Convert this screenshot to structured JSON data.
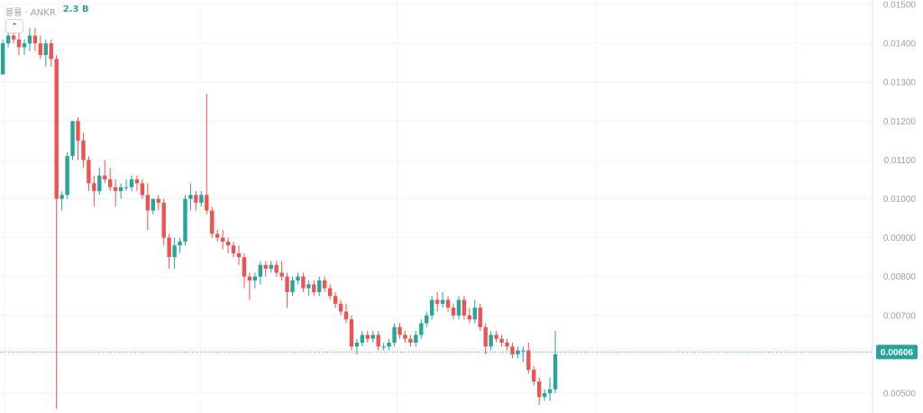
{
  "legend": {
    "label": "볼륨 · ANKR",
    "volume": "2.3 B"
  },
  "price_badge": "0.00606",
  "colors": {
    "up": "#26a69a",
    "down": "#ef5350",
    "grid": "#f0f3fa",
    "axis_text": "#9aa1ab"
  },
  "chart_data": {
    "type": "candlestick",
    "y_ticks": [
      "0.01500",
      "0.01400",
      "0.01300",
      "0.01200",
      "0.01100",
      "0.01000",
      "0.00900",
      "0.00800",
      "0.00700",
      "0.00600",
      "0.00500"
    ],
    "ylim": [
      0.0046,
      0.0151
    ],
    "current_price": 0.00606,
    "candles": [
      [
        0.0132,
        0.0141,
        0.0133,
        0.014
      ],
      [
        0.014,
        0.0144,
        0.0139,
        0.0142
      ],
      [
        0.0142,
        0.0145,
        0.014,
        0.0141
      ],
      [
        0.0141,
        0.0143,
        0.0137,
        0.0139
      ],
      [
        0.0139,
        0.0141,
        0.0137,
        0.014
      ],
      [
        0.014,
        0.0144,
        0.0138,
        0.0142
      ],
      [
        0.0142,
        0.0144,
        0.0138,
        0.014
      ],
      [
        0.014,
        0.0142,
        0.0136,
        0.0137
      ],
      [
        0.0137,
        0.0141,
        0.0134,
        0.014
      ],
      [
        0.014,
        0.0141,
        0.0134,
        0.0136
      ],
      [
        0.0136,
        0.0137,
        0.0046,
        0.01
      ],
      [
        0.01,
        0.0102,
        0.0097,
        0.0101
      ],
      [
        0.0101,
        0.0112,
        0.01,
        0.0111
      ],
      [
        0.0111,
        0.012,
        0.011,
        0.012
      ],
      [
        0.012,
        0.0121,
        0.011,
        0.0115
      ],
      [
        0.0115,
        0.0117,
        0.0108,
        0.011
      ],
      [
        0.011,
        0.0111,
        0.0102,
        0.0104
      ],
      [
        0.0104,
        0.0106,
        0.0098,
        0.0102
      ],
      [
        0.0102,
        0.0108,
        0.0101,
        0.0106
      ],
      [
        0.0106,
        0.011,
        0.0104,
        0.0105
      ],
      [
        0.0105,
        0.0108,
        0.0102,
        0.0103
      ],
      [
        0.0103,
        0.0105,
        0.0098,
        0.0102
      ],
      [
        0.0102,
        0.0104,
        0.01,
        0.0103
      ],
      [
        0.0103,
        0.0105,
        0.0102,
        0.0103
      ],
      [
        0.0103,
        0.0106,
        0.0102,
        0.0105
      ],
      [
        0.0105,
        0.0106,
        0.0102,
        0.0104
      ],
      [
        0.0104,
        0.0105,
        0.01,
        0.0101
      ],
      [
        0.0101,
        0.0104,
        0.0092,
        0.0097
      ],
      [
        0.0097,
        0.01,
        0.0096,
        0.01
      ],
      [
        0.01,
        0.0101,
        0.0097,
        0.0099
      ],
      [
        0.0099,
        0.01,
        0.0088,
        0.009
      ],
      [
        0.009,
        0.0091,
        0.0082,
        0.0085
      ],
      [
        0.0085,
        0.009,
        0.0082,
        0.0088
      ],
      [
        0.0088,
        0.009,
        0.0086,
        0.0089
      ],
      [
        0.0089,
        0.0101,
        0.0088,
        0.01
      ],
      [
        0.01,
        0.0104,
        0.0097,
        0.0101
      ],
      [
        0.0101,
        0.0102,
        0.0097,
        0.0099
      ],
      [
        0.0099,
        0.0102,
        0.0098,
        0.0101
      ],
      [
        0.0101,
        0.0127,
        0.0096,
        0.0097
      ],
      [
        0.0097,
        0.0098,
        0.009,
        0.0091
      ],
      [
        0.0091,
        0.0092,
        0.0089,
        0.009
      ],
      [
        0.009,
        0.0092,
        0.0087,
        0.0089
      ],
      [
        0.0089,
        0.009,
        0.0086,
        0.0088
      ],
      [
        0.0088,
        0.0089,
        0.0085,
        0.0086
      ],
      [
        0.0086,
        0.0088,
        0.0083,
        0.0085
      ],
      [
        0.0085,
        0.0086,
        0.0077,
        0.008
      ],
      [
        0.008,
        0.0081,
        0.0074,
        0.0079
      ],
      [
        0.0079,
        0.0081,
        0.0077,
        0.008
      ],
      [
        0.008,
        0.0084,
        0.0078,
        0.0083
      ],
      [
        0.0083,
        0.0084,
        0.008,
        0.0082
      ],
      [
        0.0082,
        0.0084,
        0.0081,
        0.0083
      ],
      [
        0.0083,
        0.0084,
        0.008,
        0.0081
      ],
      [
        0.0081,
        0.0084,
        0.0079,
        0.008
      ],
      [
        0.008,
        0.0081,
        0.0072,
        0.0076
      ],
      [
        0.0076,
        0.008,
        0.0075,
        0.0079
      ],
      [
        0.0079,
        0.0081,
        0.0078,
        0.008
      ],
      [
        0.008,
        0.0081,
        0.0076,
        0.0077
      ],
      [
        0.0077,
        0.0079,
        0.0075,
        0.0078
      ],
      [
        0.0078,
        0.0079,
        0.0075,
        0.0076
      ],
      [
        0.0076,
        0.008,
        0.0075,
        0.0079
      ],
      [
        0.0079,
        0.008,
        0.0076,
        0.0077
      ],
      [
        0.0077,
        0.0078,
        0.0074,
        0.0075
      ],
      [
        0.0075,
        0.0076,
        0.0072,
        0.0073
      ],
      [
        0.0073,
        0.0074,
        0.007,
        0.0071
      ],
      [
        0.0071,
        0.0073,
        0.0068,
        0.0069
      ],
      [
        0.0069,
        0.007,
        0.0061,
        0.0062
      ],
      [
        0.0062,
        0.0064,
        0.006,
        0.0063
      ],
      [
        0.0063,
        0.0066,
        0.0062,
        0.0065
      ],
      [
        0.0065,
        0.0066,
        0.0063,
        0.0064
      ],
      [
        0.0064,
        0.0066,
        0.0063,
        0.0065
      ],
      [
        0.0065,
        0.0066,
        0.0061,
        0.0062
      ],
      [
        0.0062,
        0.0063,
        0.0061,
        0.0062
      ],
      [
        0.0062,
        0.0064,
        0.0061,
        0.0063
      ],
      [
        0.0063,
        0.0068,
        0.0062,
        0.0067
      ],
      [
        0.0067,
        0.0068,
        0.0064,
        0.0065
      ],
      [
        0.0065,
        0.0066,
        0.0063,
        0.0064
      ],
      [
        0.0064,
        0.0065,
        0.0062,
        0.0063
      ],
      [
        0.0063,
        0.0066,
        0.0062,
        0.0065
      ],
      [
        0.0065,
        0.0069,
        0.0064,
        0.0068
      ],
      [
        0.0068,
        0.0071,
        0.0067,
        0.007
      ],
      [
        0.007,
        0.0075,
        0.0069,
        0.0074
      ],
      [
        0.0074,
        0.0076,
        0.0071,
        0.0073
      ],
      [
        0.0073,
        0.0076,
        0.0072,
        0.0074
      ],
      [
        0.0074,
        0.0075,
        0.0071,
        0.0072
      ],
      [
        0.0072,
        0.0073,
        0.0069,
        0.007
      ],
      [
        0.007,
        0.0075,
        0.0069,
        0.0074
      ],
      [
        0.0074,
        0.0075,
        0.0069,
        0.007
      ],
      [
        0.007,
        0.0072,
        0.0068,
        0.0069
      ],
      [
        0.0069,
        0.0074,
        0.0068,
        0.0072
      ],
      [
        0.0072,
        0.0073,
        0.0066,
        0.0067
      ],
      [
        0.0067,
        0.0068,
        0.006,
        0.0062
      ],
      [
        0.0062,
        0.0066,
        0.0061,
        0.0065
      ],
      [
        0.0065,
        0.0066,
        0.0063,
        0.0064
      ],
      [
        0.0064,
        0.0065,
        0.0062,
        0.0063
      ],
      [
        0.0063,
        0.0064,
        0.0061,
        0.0062
      ],
      [
        0.0062,
        0.0063,
        0.0059,
        0.006
      ],
      [
        0.006,
        0.0062,
        0.0059,
        0.0061
      ],
      [
        0.0061,
        0.0062,
        0.0058,
        0.0061
      ],
      [
        0.0061,
        0.0063,
        0.0055,
        0.0056
      ],
      [
        0.0056,
        0.0057,
        0.0052,
        0.0053
      ],
      [
        0.0053,
        0.0054,
        0.0047,
        0.0049
      ],
      [
        0.0049,
        0.0051,
        0.0048,
        0.005
      ],
      [
        0.005,
        0.0054,
        0.0048,
        0.0051
      ],
      [
        0.0051,
        0.0066,
        0.005,
        0.006
      ]
    ]
  }
}
